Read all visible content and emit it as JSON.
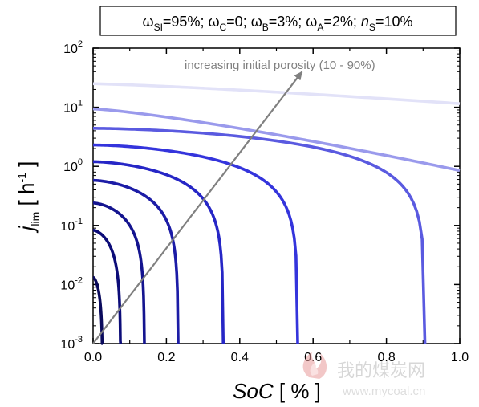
{
  "chart_data": {
    "type": "line",
    "header_parts": [
      "ω",
      "SI",
      "=95%; ω",
      "C",
      "=0;  ω",
      "B",
      "=3%; ω",
      "A",
      "=2%; ",
      "n",
      "S",
      "=10%"
    ],
    "annotation": "increasing initial porosity (10 - 90%)",
    "xlabel_parts": [
      "SoC",
      " [ % ]"
    ],
    "ylabel_parts": [
      "j",
      "lim",
      " [ h",
      "-1",
      " ]"
    ],
    "xlim": [
      0,
      1
    ],
    "ylim": [
      0.001,
      100
    ],
    "yscale": "log",
    "x_ticks": [
      "0.0",
      "0.2",
      "0.4",
      "0.6",
      "0.8",
      "1.0"
    ],
    "x_tick_values": [
      0,
      0.2,
      0.4,
      0.6,
      0.8,
      1.0
    ],
    "y_ticks": [
      {
        "base": "10",
        "exp": "-3",
        "value": 0.001
      },
      {
        "base": "10",
        "exp": "-2",
        "value": 0.01
      },
      {
        "base": "10",
        "exp": "-1",
        "value": 0.1
      },
      {
        "base": "10",
        "exp": "0",
        "value": 1
      },
      {
        "base": "10",
        "exp": "1",
        "value": 10
      },
      {
        "base": "10",
        "exp": "2",
        "value": 100
      }
    ],
    "series": [
      {
        "color": "#0a0a5c",
        "j0": 0.0132,
        "x_end": 0.026
      },
      {
        "color": "#0c0c78",
        "j0": 0.083,
        "x_end": 0.075
      },
      {
        "color": "#14148f",
        "j0": 0.24,
        "x_end": 0.14
      },
      {
        "color": "#1c1ca6",
        "j0": 0.58,
        "x_end": 0.232
      },
      {
        "color": "#2626c6",
        "j0": 1.2,
        "x_end": 0.355
      },
      {
        "color": "#3434dc",
        "j0": 2.3,
        "x_end": 0.558
      },
      {
        "color": "#5a5ae0",
        "j0": 4.4,
        "x_end": 0.905
      },
      {
        "color": "#9a9aec",
        "j0": 9.4,
        "j_end": 0.85
      },
      {
        "color": "#e2e2f8",
        "j0": 25,
        "j_end": 11.5
      }
    ],
    "arrow": {
      "from": [
        0.0,
        0.001
      ],
      "to": [
        0.57,
        40
      ]
    }
  },
  "watermark": {
    "text_cn": "我的煤炭网",
    "text_url": "www.mycoal.cn"
  }
}
